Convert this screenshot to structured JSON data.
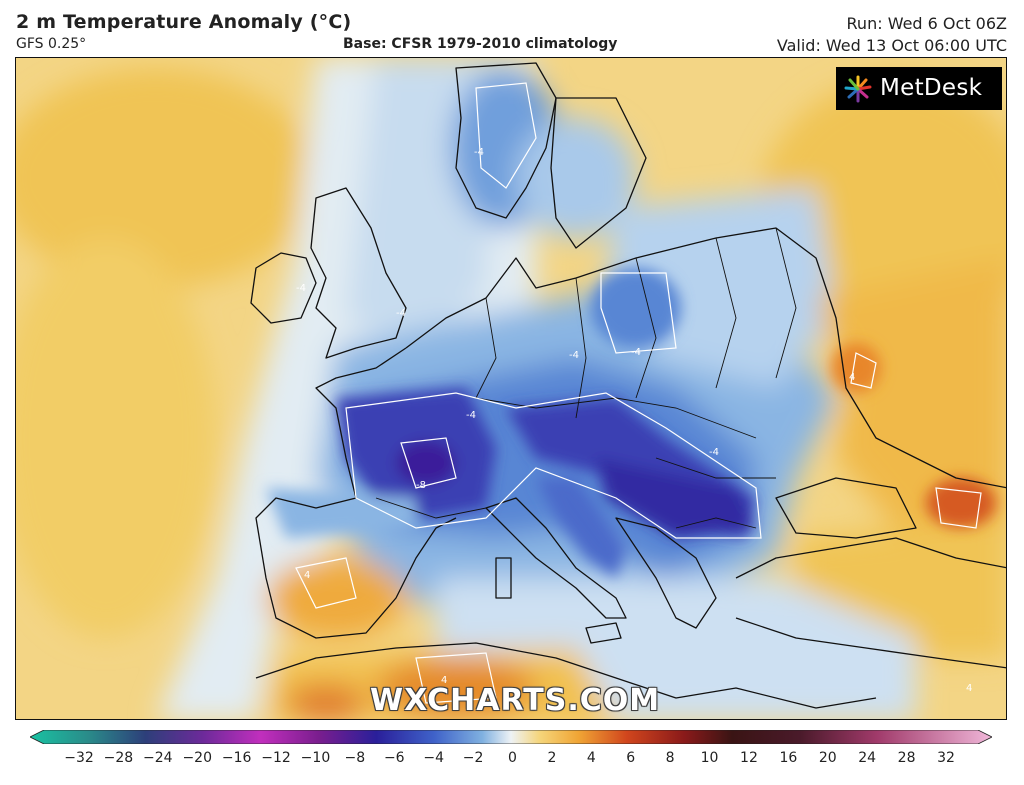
{
  "header": {
    "title": "2 m Temperature Anomaly (°C)",
    "model": "GFS 0.25°",
    "base": "Base: CFSR 1979-2010 climatology",
    "run": "Run: Wed 6 Oct 06Z",
    "valid": "Valid: Wed 13 Oct 06:00 UTC"
  },
  "branding": {
    "logo_text": "MetDesk",
    "watermark": "WXCHARTS.COM"
  },
  "colorbar": {
    "ticks": [
      "−32",
      "−28",
      "−24",
      "−20",
      "−16",
      "−12",
      "−10",
      "−8",
      "−6",
      "−4",
      "−2",
      "0",
      "2",
      "4",
      "6",
      "8",
      "10",
      "12",
      "16",
      "20",
      "24",
      "28",
      "32"
    ],
    "colors": {
      "deep_cold": "#2a1f9a",
      "cold": "#3f62c9",
      "cool": "#7fb0e0",
      "slightly_cool": "#d8e8f5",
      "neutral": "#f5eed3",
      "warm": "#f3c64a",
      "hot": "#e98b24",
      "very_hot": "#c24a1c"
    }
  },
  "map": {
    "contour_labels": [
      "-4",
      "-4",
      "-4",
      "-4",
      "-4",
      "-4",
      "-4",
      "-8",
      "4",
      "4",
      "4",
      "4"
    ]
  }
}
